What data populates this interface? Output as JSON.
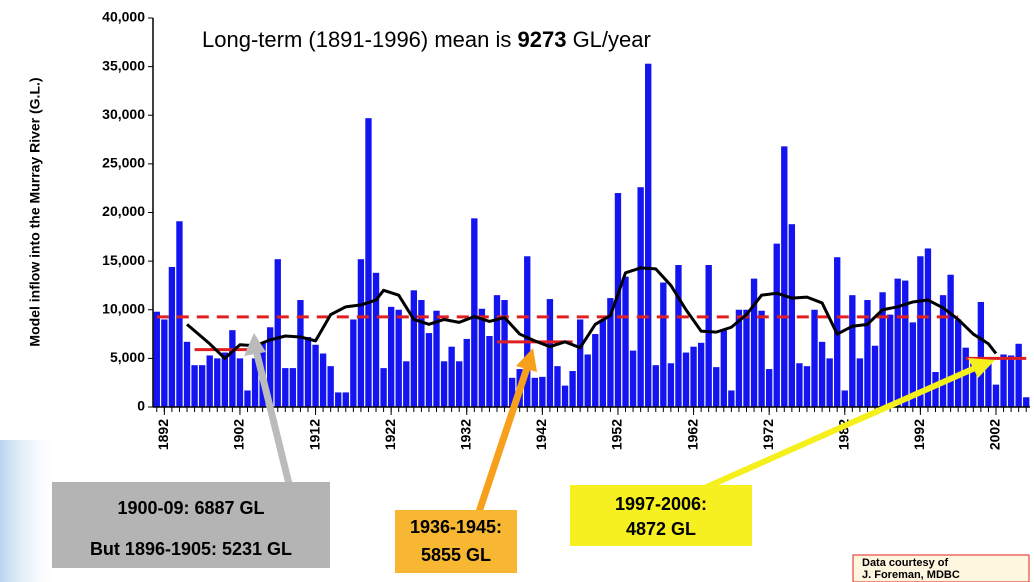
{
  "chart_data": {
    "type": "bar",
    "title": [
      "Long-term (1891-1996) mean is ",
      "9273",
      " GL/year"
    ],
    "ylabel": "Model inflow into the Murray River (G.L.)",
    "x": [
      1891,
      1892,
      1893,
      1894,
      1895,
      1896,
      1897,
      1898,
      1899,
      1900,
      1901,
      1902,
      1903,
      1904,
      1905,
      1906,
      1907,
      1908,
      1909,
      1910,
      1911,
      1912,
      1913,
      1914,
      1915,
      1916,
      1917,
      1918,
      1919,
      1920,
      1921,
      1922,
      1923,
      1924,
      1925,
      1926,
      1927,
      1928,
      1929,
      1930,
      1931,
      1932,
      1933,
      1934,
      1935,
      1936,
      1937,
      1938,
      1939,
      1940,
      1941,
      1942,
      1943,
      1944,
      1945,
      1946,
      1947,
      1948,
      1949,
      1950,
      1951,
      1952,
      1953,
      1954,
      1955,
      1956,
      1957,
      1958,
      1959,
      1960,
      1961,
      1962,
      1963,
      1964,
      1965,
      1966,
      1967,
      1968,
      1969,
      1970,
      1971,
      1972,
      1973,
      1974,
      1975,
      1976,
      1977,
      1978,
      1979,
      1980,
      1981,
      1982,
      1983,
      1984,
      1985,
      1986,
      1987,
      1988,
      1989,
      1990,
      1991,
      1992,
      1993,
      1994,
      1995,
      1996,
      1997,
      1998,
      1999,
      2000,
      2001,
      2002,
      2003,
      2004,
      2005,
      2006
    ],
    "values": [
      9800,
      9000,
      14400,
      19100,
      6700,
      4300,
      4300,
      5300,
      5000,
      5600,
      7900,
      5000,
      1700,
      5000,
      6600,
      8200,
      15200,
      4000,
      4000,
      11000,
      7200,
      6400,
      5500,
      4200,
      1500,
      1500,
      9000,
      15200,
      29700,
      13800,
      4000,
      10300,
      10000,
      4700,
      12000,
      11000,
      7600,
      9900,
      4700,
      6200,
      4700,
      7000,
      19400,
      10100,
      7300,
      11500,
      11000,
      3000,
      3900,
      15500,
      3000,
      3100,
      11100,
      4200,
      2200,
      3700,
      9000,
      5400,
      7500,
      9000,
      11200,
      22000,
      13400,
      5800,
      22600,
      35300,
      4300,
      12800,
      4500,
      14600,
      5600,
      6200,
      6600,
      14600,
      4100,
      7900,
      1700,
      10000,
      10000,
      13200,
      9900,
      3900,
      16800,
      26800,
      18800,
      4500,
      4200,
      10000,
      6700,
      5000,
      15400,
      1700,
      11500,
      5000,
      11000,
      6300,
      11800,
      9500,
      13200,
      13000,
      8700,
      15500,
      16300,
      3600,
      11500,
      13600,
      9000,
      6100,
      4500,
      10800,
      5000,
      2300,
      5400,
      5300,
      6500,
      1000
    ],
    "color": "#1414f0",
    "moving_average": {
      "color": "#000000",
      "x": [
        1895,
        1898,
        1900,
        1902,
        1904,
        1906,
        1908,
        1910,
        1912,
        1914,
        1916,
        1918,
        1920,
        1921,
        1923,
        1925,
        1927,
        1929,
        1931,
        1933,
        1935,
        1937,
        1939,
        1941,
        1943,
        1945,
        1947,
        1949,
        1951,
        1953,
        1955,
        1957,
        1959,
        1961,
        1963,
        1965,
        1967,
        1969,
        1971,
        1973,
        1975,
        1977,
        1979,
        1981,
        1983,
        1985,
        1987,
        1989,
        1991,
        1993,
        1995,
        1997,
        1999,
        2001,
        2002
      ],
      "values": [
        8500,
        6500,
        5000,
        6400,
        6300,
        6900,
        7300,
        7200,
        6800,
        9500,
        10300,
        10500,
        11000,
        12000,
        11500,
        9000,
        8500,
        9000,
        8700,
        9300,
        8800,
        9200,
        7500,
        6800,
        6200,
        6700,
        6100,
        8500,
        9400,
        13800,
        14300,
        14200,
        12500,
        10000,
        7800,
        7700,
        8200,
        9500,
        11500,
        11700,
        11200,
        11300,
        10700,
        7500,
        8300,
        8500,
        10000,
        10300,
        10800,
        11000,
        10200,
        9000,
        7500,
        6500,
        5500
      ]
    },
    "mean_line": {
      "color": "#e02020",
      "x": [
        1891,
        1997
      ],
      "value": 9273
    },
    "period_lines": [
      {
        "x": [
          1896,
          1905
        ],
        "value": 5900
      },
      {
        "x": [
          1936,
          1946
        ],
        "value": 6700
      },
      {
        "x": [
          1998,
          2006
        ],
        "value": 5000
      }
    ],
    "xlim": [
      1890.5,
      2006.5
    ],
    "xticks": [
      1892,
      1902,
      1912,
      1922,
      1932,
      1942,
      1952,
      1962,
      1972,
      1982,
      1992,
      2002
    ],
    "ylim": [
      0,
      40000
    ],
    "yticks": [
      0,
      {
        "value": 5000,
        "label": "5,000"
      },
      {
        "value": 10000,
        "label": "10,000"
      },
      {
        "value": 15000,
        "label": "15,000"
      },
      {
        "value": 20000,
        "label": "20,000"
      },
      {
        "value": 25000,
        "label": "25,000"
      },
      {
        "value": 30000,
        "label": "30,000"
      },
      {
        "value": 35000,
        "label": "35,000"
      },
      {
        "value": 40000,
        "label": "40,000"
      }
    ],
    "annotations": [
      {
        "lines": [
          "1900-09: 6887 GL",
          "But 1896-1905: 5231 GL"
        ]
      },
      {
        "lines": [
          "1936-1945:",
          "5855 GL"
        ]
      },
      {
        "lines": [
          "1997-2006:",
          "4872 GL"
        ]
      },
      {
        "lines": [
          "Data courtesy of",
          "J. Foreman, MDBC"
        ]
      }
    ]
  }
}
